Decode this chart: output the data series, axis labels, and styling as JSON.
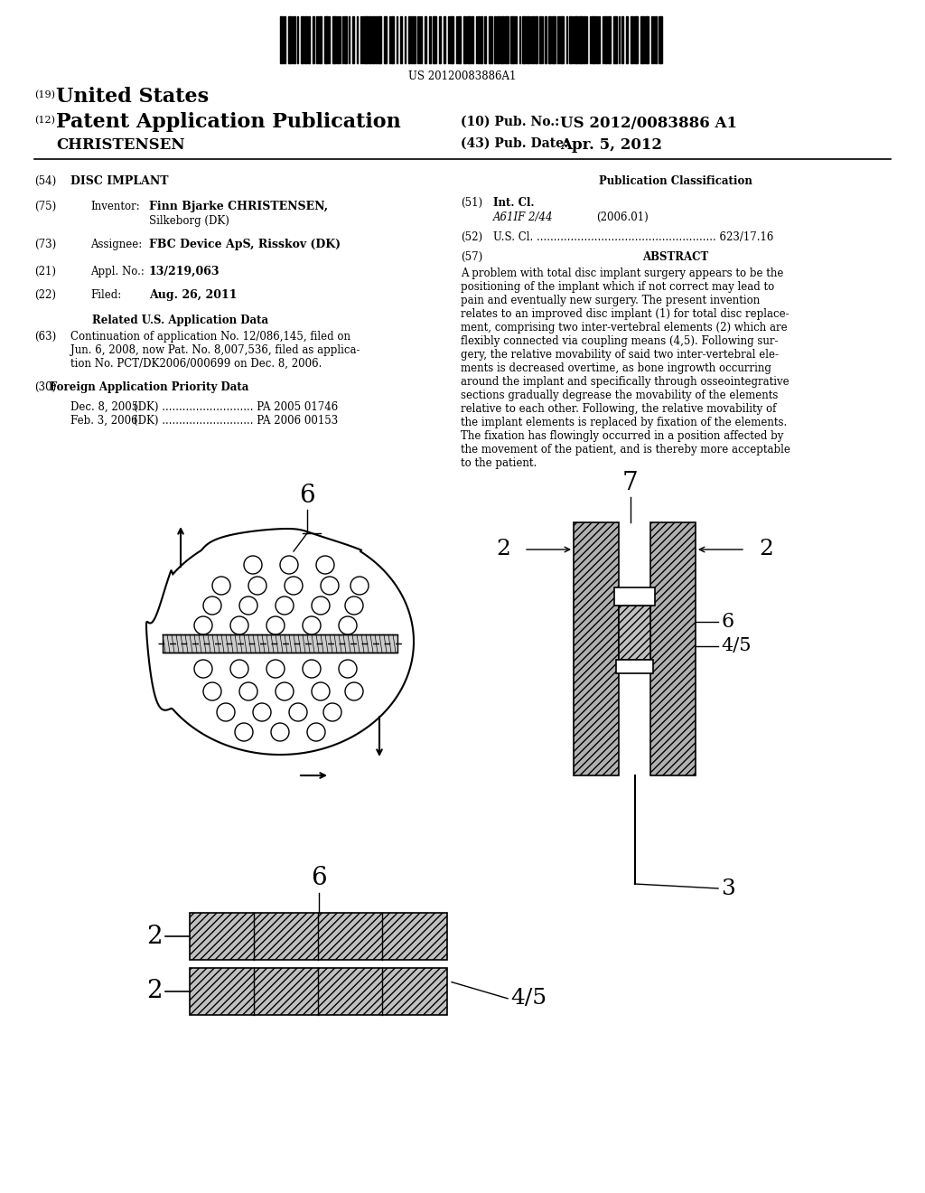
{
  "bg_color": "#ffffff",
  "barcode_text": "US 20120083886A1",
  "label19": "(19)",
  "united_states": "United States",
  "label12": "(12)",
  "patent_app_pub": "Patent Application Publication",
  "christensen_header": "CHRISTENSEN",
  "label10": "(10) Pub. No.:",
  "pub_no": "US 2012/0083886 A1",
  "label43": "(43) Pub. Date:",
  "pub_date": "Apr. 5, 2012",
  "label54": "(54)",
  "disc_implant": "DISC IMPLANT",
  "pub_class_title": "Publication Classification",
  "label51": "(51)",
  "int_cl_label": "Int. Cl.",
  "a61f_italic": "A61IF 2/44",
  "a61f_year": "(2006.01)",
  "label52": "(52)",
  "us_cl_line": "U.S. Cl. ..................................................... 623/17.16",
  "label57": "(57)",
  "abstract_title": "ABSTRACT",
  "label75": "(75)",
  "inventor_label": "Inventor:",
  "inventor_name": "Finn Bjarke CHRISTENSEN,",
  "inventor_city": "Silkeborg (DK)",
  "label73": "(73)",
  "assignee_label": "Assignee:",
  "assignee_name": "FBC Device ApS, Risskov (DK)",
  "label21": "(21)",
  "appl_no_label": "Appl. No.:",
  "appl_no": "13/219,063",
  "label22": "(22)",
  "filed_label": "Filed:",
  "filed_date": "Aug. 26, 2011",
  "related_us_title": "Related U.S. Application Data",
  "label63": "(63)",
  "cont_line1": "Continuation of application No. 12/086,145, filed on",
  "cont_line2": "Jun. 6, 2008, now Pat. No. 8,007,536, filed as applica-",
  "cont_line3": "tion No. PCT/DK2006/000699 on Dec. 8, 2006.",
  "label30": "(30)",
  "foreign_app_title": "Foreign Application Priority Data",
  "foreign1_date": "Dec. 8, 2005",
  "foreign1_rest": "(DK) ........................... PA 2005 01746",
  "foreign2_date": "Feb. 3, 2006",
  "foreign2_rest": "(DK) ........................... PA 2006 00153",
  "abstract_lines": [
    "A problem with total disc implant surgery appears to be the",
    "positioning of the implant which if not correct may lead to",
    "pain and eventually new surgery. The present invention",
    "relates to an improved disc implant (1) for total disc replace-",
    "ment, comprising two inter-vertebral elements (2) which are",
    "flexibly connected via coupling means (4,5). Following sur-",
    "gery, the relative movability of said two inter-vertebral ele-",
    "ments is decreased overtime, as bone ingrowth occurring",
    "around the implant and specifically through osseointegrative",
    "sections gradually degrease the movability of the elements",
    "relative to each other. Following, the relative movability of",
    "the implant elements is replaced by fixation of the elements.",
    "The fixation has flowingly occurred in a position affected by",
    "the movement of the patient, and is thereby more acceptable",
    "to the patient."
  ]
}
